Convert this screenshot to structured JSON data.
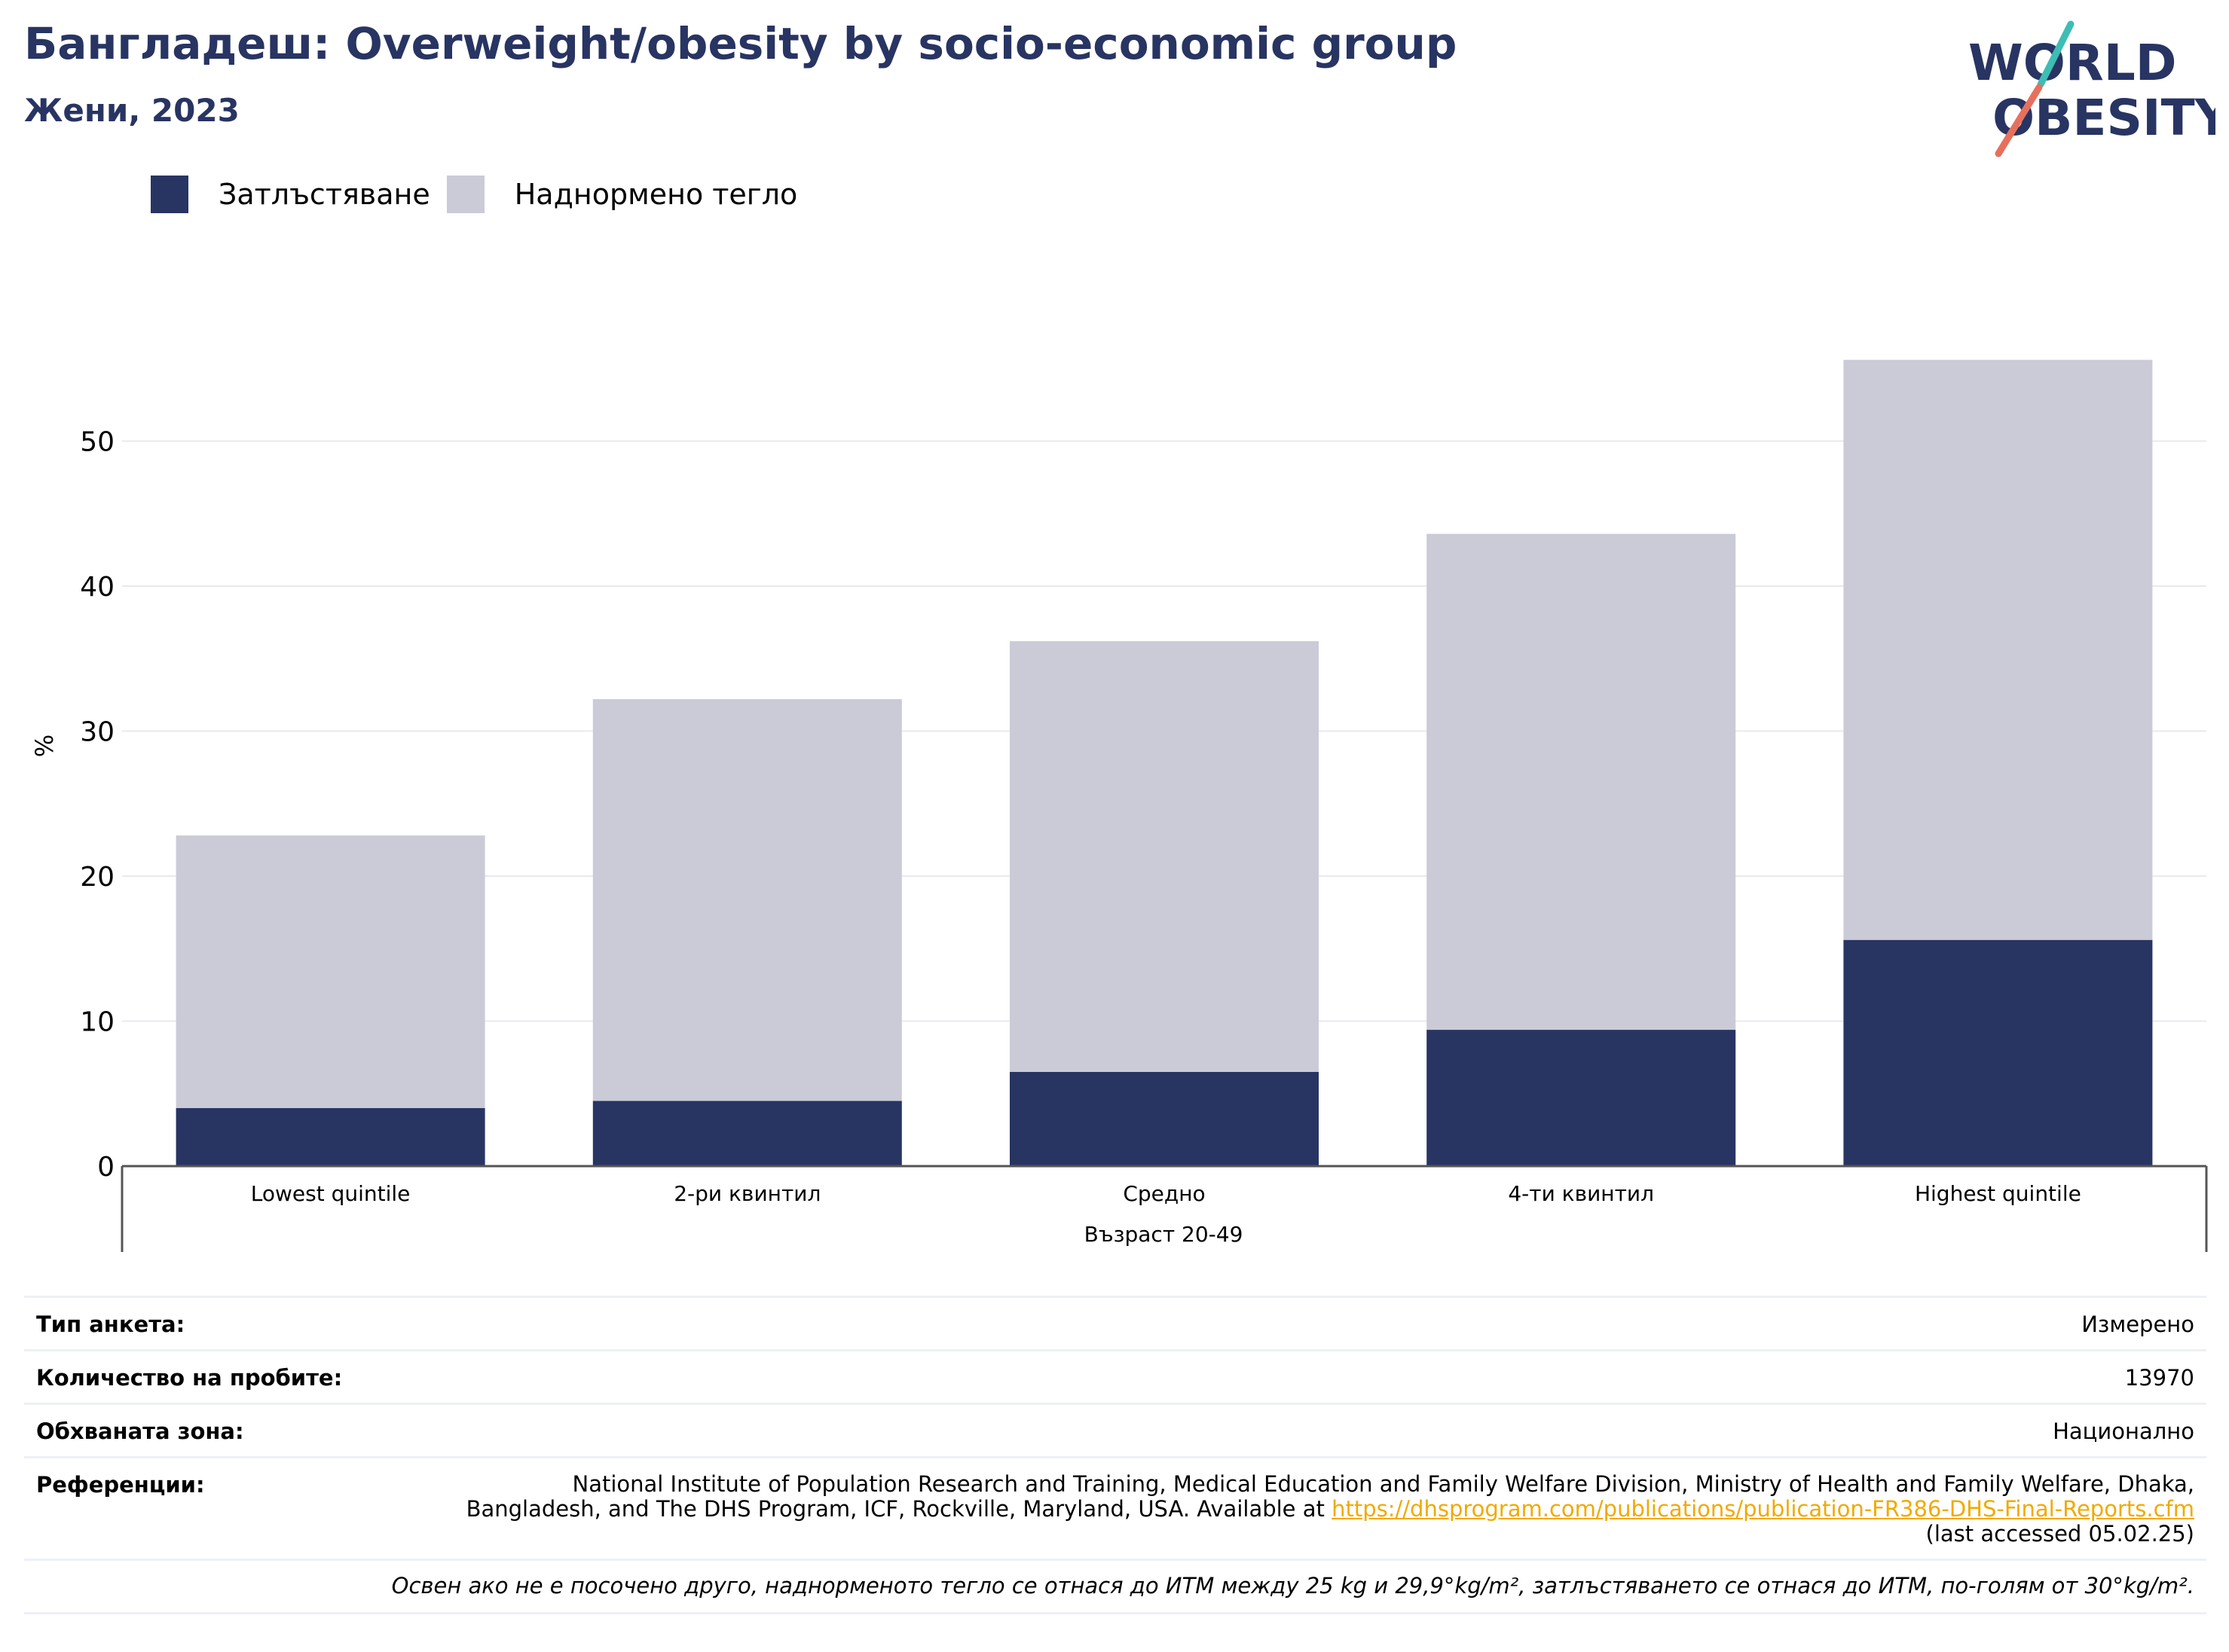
{
  "header": {
    "title": "Бангладеш: Overweight/obesity by socio-economic group",
    "subtitle": "Жени, 2023"
  },
  "logo": {
    "line1": "WORLD",
    "line2": "OBESITY",
    "colors": {
      "text": "#283462",
      "slash_top": "#3dbdb4",
      "slash_bottom": "#e7705d"
    }
  },
  "chart_data": {
    "type": "bar",
    "stacked": true,
    "categories": [
      "Lowest quintile",
      "2-ри квинтил",
      "Средно",
      "4-ти квинтил",
      "Highest quintile"
    ],
    "group_label": "Възраст 20-49",
    "series": [
      {
        "name": "Затлъстяване",
        "color": "#283462",
        "values": [
          4.0,
          4.5,
          6.5,
          9.4,
          15.6
        ]
      },
      {
        "name": "Наднормено тегло",
        "color": "#cacbd7",
        "values": [
          18.8,
          27.7,
          29.7,
          34.2,
          40.0
        ]
      }
    ],
    "ylabel": "%",
    "ylim": [
      0,
      60
    ],
    "yticks": [
      0,
      10,
      20,
      30,
      40,
      50
    ],
    "grid": true,
    "legend_position": "top-left"
  },
  "info": {
    "survey_type": {
      "label": "Тип анкета:",
      "value": "Измерено"
    },
    "sample_size": {
      "label": "Количество на пробите:",
      "value": "13970"
    },
    "coverage": {
      "label": "Обхваната зона:",
      "value": "Национално"
    },
    "references": {
      "label": "Референции:",
      "text": "National Institute of Population Research and Training, Medical Education and Family Welfare Division, Ministry of Health and Family Welfare, Dhaka, Bangladesh, and The DHS Program, ICF, Rockville, Maryland, USA. Available at ",
      "link": "https://dhsprogram.com/publications/publication-FR386-DHS-Final-Reports.cfm",
      "suffix": " (last accessed 05.02.25)"
    },
    "note": "Освен ако не е посочено друго, наднорменото тегло се отнася до ИТМ между 25 kg и 29,9°kg/m², затлъстяването се отнася до ИТМ, по-голям от 30°kg/m²."
  }
}
